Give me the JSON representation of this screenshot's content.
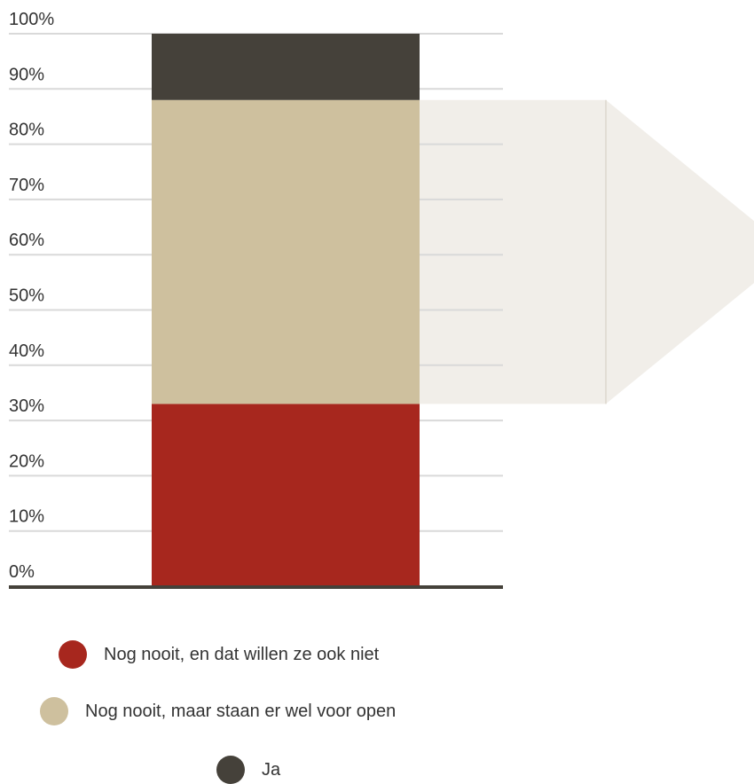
{
  "chart_data": {
    "type": "bar",
    "stacked": true,
    "categories": [
      ""
    ],
    "series": [
      {
        "name": "Nog nooit, en dat willen ze ook niet",
        "values": [
          33
        ],
        "color": "#a7271e"
      },
      {
        "name": "Nog nooit, maar staan er wel voor open",
        "values": [
          55
        ],
        "color": "#cec09e"
      },
      {
        "name": "Ja",
        "values": [
          12
        ],
        "color": "#45413a"
      }
    ],
    "y_ticks": [
      "0%",
      "10%",
      "20%",
      "30%",
      "40%",
      "50%",
      "60%",
      "70%",
      "80%",
      "90%",
      "100%"
    ],
    "ylim": [
      0,
      100
    ],
    "grid": true,
    "legend_position": "bottom",
    "callout": {
      "from_series": "Nog nooit, maar staan er wel voor open",
      "color": "#f1eee9",
      "direction": "right"
    }
  }
}
